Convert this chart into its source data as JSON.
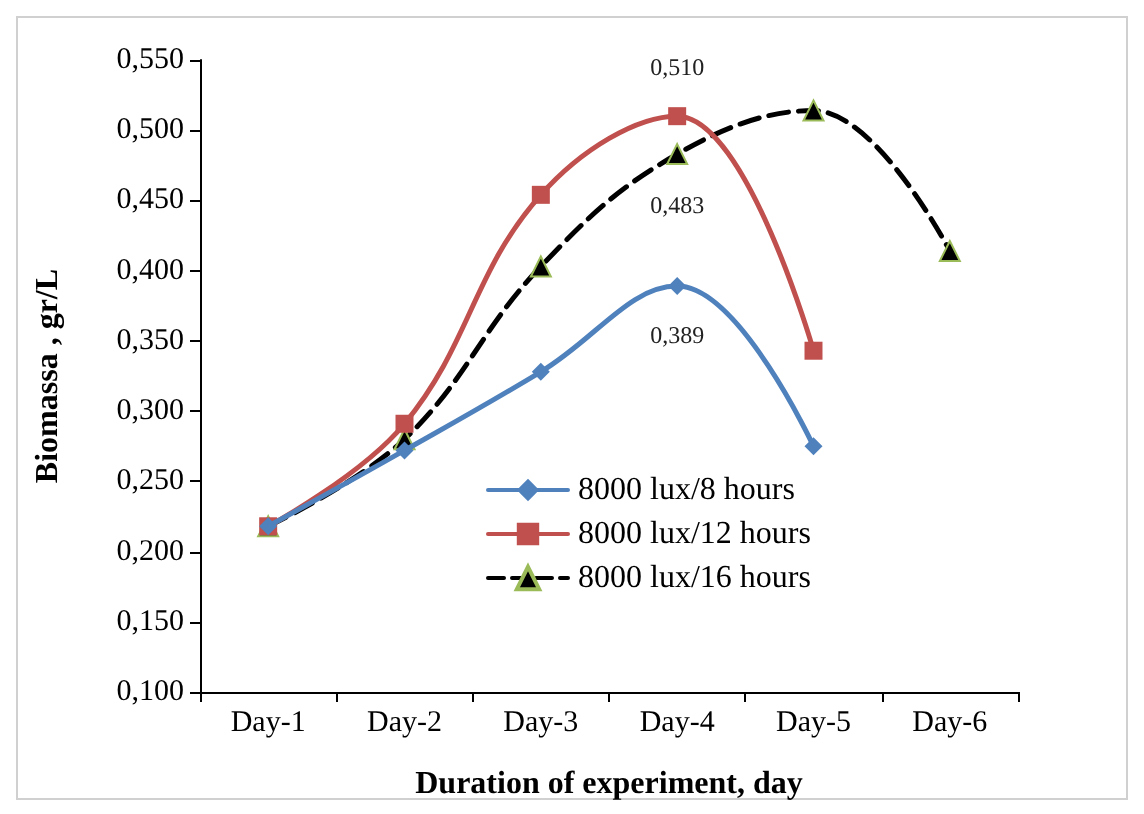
{
  "chart_data": {
    "type": "line",
    "xlabel": "Duration of experiment, day",
    "ylabel": "Biomassa , gr/L",
    "categories": [
      "Day-1",
      "Day-2",
      "Day-3",
      "Day-4",
      "Day-5",
      "Day-6"
    ],
    "series": [
      {
        "name": "8000 lux/8 hours",
        "color": "#4f81bd",
        "marker": "diamond",
        "line_style": "solid",
        "values": [
          0.218,
          0.272,
          0.328,
          0.389,
          0.275,
          null
        ],
        "value_labels": [
          null,
          null,
          null,
          "0,389",
          null,
          null
        ]
      },
      {
        "name": "8000 lux/12 hours",
        "color": "#c0504d",
        "marker": "square",
        "line_style": "solid",
        "values": [
          0.218,
          0.291,
          0.454,
          0.51,
          0.343,
          null
        ],
        "value_labels": [
          null,
          null,
          null,
          "0,510",
          null,
          null
        ]
      },
      {
        "name": "8000 lux/16 hours",
        "color": "#000000",
        "marker": "triangle",
        "line_style": "dashed",
        "values": [
          0.218,
          0.28,
          0.403,
          0.483,
          0.514,
          0.414
        ],
        "value_labels": [
          null,
          null,
          null,
          "0,483",
          null,
          null
        ]
      }
    ],
    "ylim": [
      0.1,
      0.55
    ],
    "yticks": [
      {
        "value": 0.1,
        "label": "0,100"
      },
      {
        "value": 0.15,
        "label": "0,150"
      },
      {
        "value": 0.2,
        "label": "0,200"
      },
      {
        "value": 0.25,
        "label": "0,250"
      },
      {
        "value": 0.3,
        "label": "0,300"
      },
      {
        "value": 0.35,
        "label": "0,350"
      },
      {
        "value": 0.4,
        "label": "0,400"
      },
      {
        "value": 0.45,
        "label": "0,450"
      },
      {
        "value": 0.5,
        "label": "0,500"
      },
      {
        "value": 0.55,
        "label": "0,550"
      }
    ],
    "grid": false,
    "legend": "bottom right"
  }
}
